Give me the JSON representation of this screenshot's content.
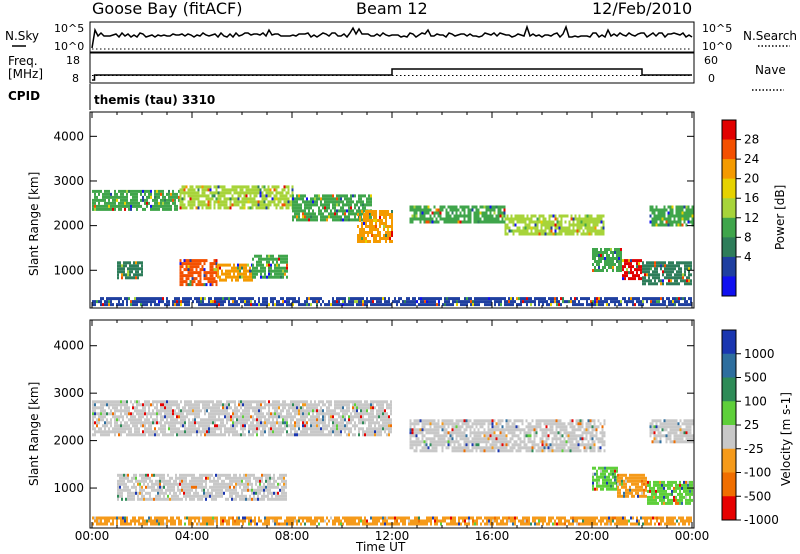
{
  "header": {
    "station": "Goose Bay (fitACF)",
    "beam": "Beam 12",
    "date": "12/Feb/2010"
  },
  "nsky_panel": {
    "left_label": "N.Sky",
    "right_label": "N.Search",
    "tick_top": "10^5",
    "tick_bottom": "10^0"
  },
  "freq_panel": {
    "left_label_line1": "Freq.",
    "left_label_line2": "[MHz]",
    "right_label": "Nave",
    "left_ticks": [
      "18",
      "8"
    ],
    "right_ticks": [
      "60",
      "0"
    ]
  },
  "cpid": {
    "label": "CPID",
    "value": "themis (tau) 3310"
  },
  "power_colorbar": {
    "title": "Power [dB]",
    "ticks": [
      "28",
      "24",
      "20",
      "16",
      "12",
      "8",
      "4"
    ],
    "colors": [
      "#e10000",
      "#f45000",
      "#f49a00",
      "#e6d200",
      "#a7d43a",
      "#3fa54b",
      "#2e7d5a",
      "#1f3fa0",
      "#1010f0"
    ]
  },
  "velocity_colorbar": {
    "title": "Velocity [m s-1]",
    "ticks": [
      "1000",
      "500",
      "100",
      "25",
      "-25",
      "-100",
      "-500",
      "-1000"
    ],
    "colors": [
      "#1a36b0",
      "#2e6e9e",
      "#2e8b57",
      "#5ecf3a",
      "#c8c8c8",
      "#f59a1a",
      "#f06e00",
      "#e60000"
    ]
  },
  "x_axis_title": "Time UT",
  "y_axis_title": "Slant Range [km]",
  "chart_data": [
    {
      "type": "line",
      "title": "N.Sky / N.Search",
      "series": [
        {
          "name": "N.Sky",
          "style": "solid",
          "level_fraction_of_range": 0.8
        },
        {
          "name": "N.Search",
          "style": "dotted",
          "level_fraction_of_range": 0.0
        }
      ]
    },
    {
      "type": "line",
      "title": "Freq. / Nave",
      "series": [
        {
          "name": "Freq",
          "unit": "MHz",
          "x_hours": [
            0.0,
            0.1,
            0.1,
            12.0,
            12.0,
            22.0,
            22.0,
            24.0
          ],
          "y": [
            8,
            8,
            10.5,
            10.5,
            13.5,
            13.5,
            10.5,
            10.5
          ]
        },
        {
          "name": "Nave",
          "style": "dotted",
          "x_hours": [
            0,
            24
          ],
          "y": [
            30,
            30
          ]
        }
      ]
    },
    {
      "type": "heatmap",
      "title": "Power [dB]",
      "x_range_hours": [
        0,
        24
      ],
      "y_range_km": [
        200,
        4500
      ],
      "x_ticks": [
        "00:00",
        "04:00",
        "08:00",
        "12:00",
        "16:00",
        "20:00",
        "00:00"
      ],
      "y_ticks": [
        1000,
        2000,
        3000,
        4000
      ],
      "regions": [
        {
          "t0": 0.0,
          "t1": 3.5,
          "r0": 2350,
          "r1": 2800,
          "color": "#3fa54b"
        },
        {
          "t0": 3.5,
          "t1": 8.0,
          "r0": 2400,
          "r1": 2900,
          "color": "#a7d43a"
        },
        {
          "t0": 8.0,
          "t1": 11.2,
          "r0": 2150,
          "r1": 2700,
          "color": "#3fa54b"
        },
        {
          "t0": 10.6,
          "t1": 12.0,
          "r0": 1650,
          "r1": 2350,
          "color": "#f49a00"
        },
        {
          "t0": 12.7,
          "t1": 16.5,
          "r0": 2050,
          "r1": 2450,
          "color": "#3fa54b"
        },
        {
          "t0": 16.5,
          "t1": 20.5,
          "r0": 1800,
          "r1": 2250,
          "color": "#a7d43a"
        },
        {
          "t0": 22.3,
          "t1": 24.0,
          "r0": 2000,
          "r1": 2450,
          "color": "#3fa54b"
        },
        {
          "t0": 1.0,
          "t1": 2.0,
          "r0": 850,
          "r1": 1200,
          "color": "#2e7d5a"
        },
        {
          "t0": 3.5,
          "t1": 5.0,
          "r0": 650,
          "r1": 1250,
          "color": "#f45000"
        },
        {
          "t0": 5.0,
          "t1": 6.4,
          "r0": 750,
          "r1": 1150,
          "color": "#f49a00"
        },
        {
          "t0": 6.4,
          "t1": 7.8,
          "r0": 850,
          "r1": 1350,
          "color": "#3fa54b"
        },
        {
          "t0": 20.0,
          "t1": 21.2,
          "r0": 1000,
          "r1": 1500,
          "color": "#3fa54b"
        },
        {
          "t0": 21.2,
          "t1": 22.0,
          "r0": 800,
          "r1": 1250,
          "color": "#e10000"
        },
        {
          "t0": 22.0,
          "t1": 24.0,
          "r0": 700,
          "r1": 1200,
          "color": "#2e7d5a"
        },
        {
          "t0": 0.0,
          "t1": 24.0,
          "r0": 250,
          "r1": 400,
          "color": "#1f3fa0"
        }
      ]
    },
    {
      "type": "heatmap",
      "title": "Velocity [m s-1]",
      "x_range_hours": [
        0,
        24
      ],
      "y_range_km": [
        200,
        4500
      ],
      "x_ticks": [
        "00:00",
        "04:00",
        "08:00",
        "12:00",
        "16:00",
        "20:00",
        "00:00"
      ],
      "y_ticks": [
        1000,
        2000,
        3000,
        4000
      ],
      "regions": [
        {
          "t0": 0.0,
          "t1": 12.0,
          "r0": 2150,
          "r1": 2850,
          "color": "#c8c8c8"
        },
        {
          "t0": 12.7,
          "t1": 20.5,
          "r0": 1800,
          "r1": 2450,
          "color": "#c8c8c8"
        },
        {
          "t0": 22.3,
          "t1": 24.0,
          "r0": 2000,
          "r1": 2450,
          "color": "#c8c8c8"
        },
        {
          "t0": 1.0,
          "t1": 7.8,
          "r0": 750,
          "r1": 1300,
          "color": "#c8c8c8"
        },
        {
          "t0": 20.0,
          "t1": 21.0,
          "r0": 1000,
          "r1": 1450,
          "color": "#5ecf3a"
        },
        {
          "t0": 21.0,
          "t1": 22.2,
          "r0": 800,
          "r1": 1300,
          "color": "#f59a1a"
        },
        {
          "t0": 22.2,
          "t1": 24.0,
          "r0": 700,
          "r1": 1150,
          "color": "#5ecf3a"
        },
        {
          "t0": 0.0,
          "t1": 24.0,
          "r0": 250,
          "r1": 400,
          "color": "#f59a1a"
        }
      ]
    }
  ]
}
